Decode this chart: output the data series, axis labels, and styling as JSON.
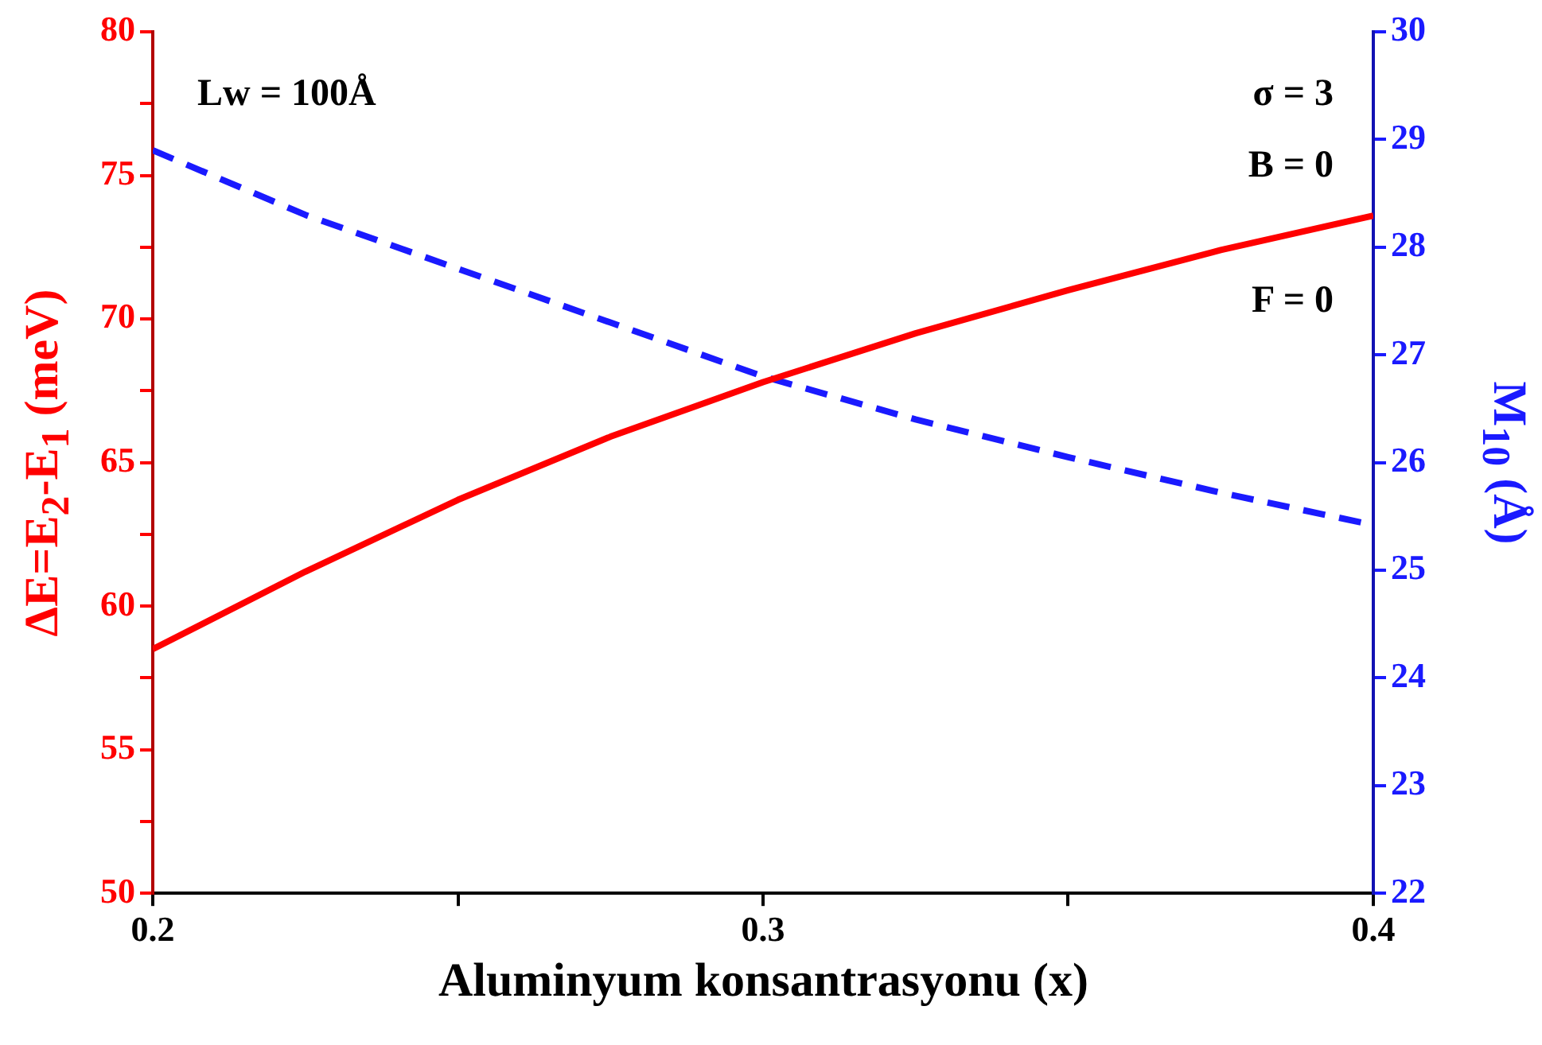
{
  "chart_data": {
    "type": "line",
    "xlabel": "Aluminyum konsantrasyonu (x)",
    "ylabel": "ΔE=E$_{2}$-E$_{1}$ (meV)",
    "y2label": "M$_{10}$ (Å)",
    "x": [
      0.2,
      0.225,
      0.25,
      0.275,
      0.3,
      0.325,
      0.35,
      0.375,
      0.4
    ],
    "series": [
      {
        "color": "#ff0000",
        "line_style": "solid",
        "values": [
          58.5,
          61.2,
          63.7,
          65.9,
          67.8,
          69.5,
          71.0,
          72.4,
          73.6
        ]
      },
      {
        "color": "#1a1aff",
        "line_style": "dashed",
        "axis": "y2",
        "values": [
          28.9,
          28.3,
          27.8,
          27.3,
          26.8,
          26.4,
          26.05,
          25.72,
          25.42
        ]
      }
    ],
    "xlim": [
      0.2,
      0.4
    ],
    "xticks": [
      0.2,
      {
        "value": 0.25,
        "label": null
      },
      0.3,
      {
        "value": 0.35,
        "label": null
      },
      0.4
    ],
    "ylim": [
      50,
      80
    ],
    "yticks": [
      50,
      {
        "value": 52.5,
        "label": null
      },
      55,
      {
        "value": 57.5,
        "label": null
      },
      60,
      {
        "value": 62.5,
        "label": null
      },
      65,
      {
        "value": 67.5,
        "label": null
      },
      70,
      {
        "value": 72.5,
        "label": null
      },
      75,
      {
        "value": 77.5,
        "label": null
      },
      80
    ],
    "y2lim": [
      22,
      30
    ],
    "y2ticks": [
      22,
      23,
      24,
      25,
      26,
      27,
      28,
      29,
      30
    ],
    "annotations": [
      "Lw = 100Å",
      "σ = 3",
      "B = 0",
      "F = 0"
    ],
    "grid": false,
    "legend": false,
    "marker": "none"
  }
}
